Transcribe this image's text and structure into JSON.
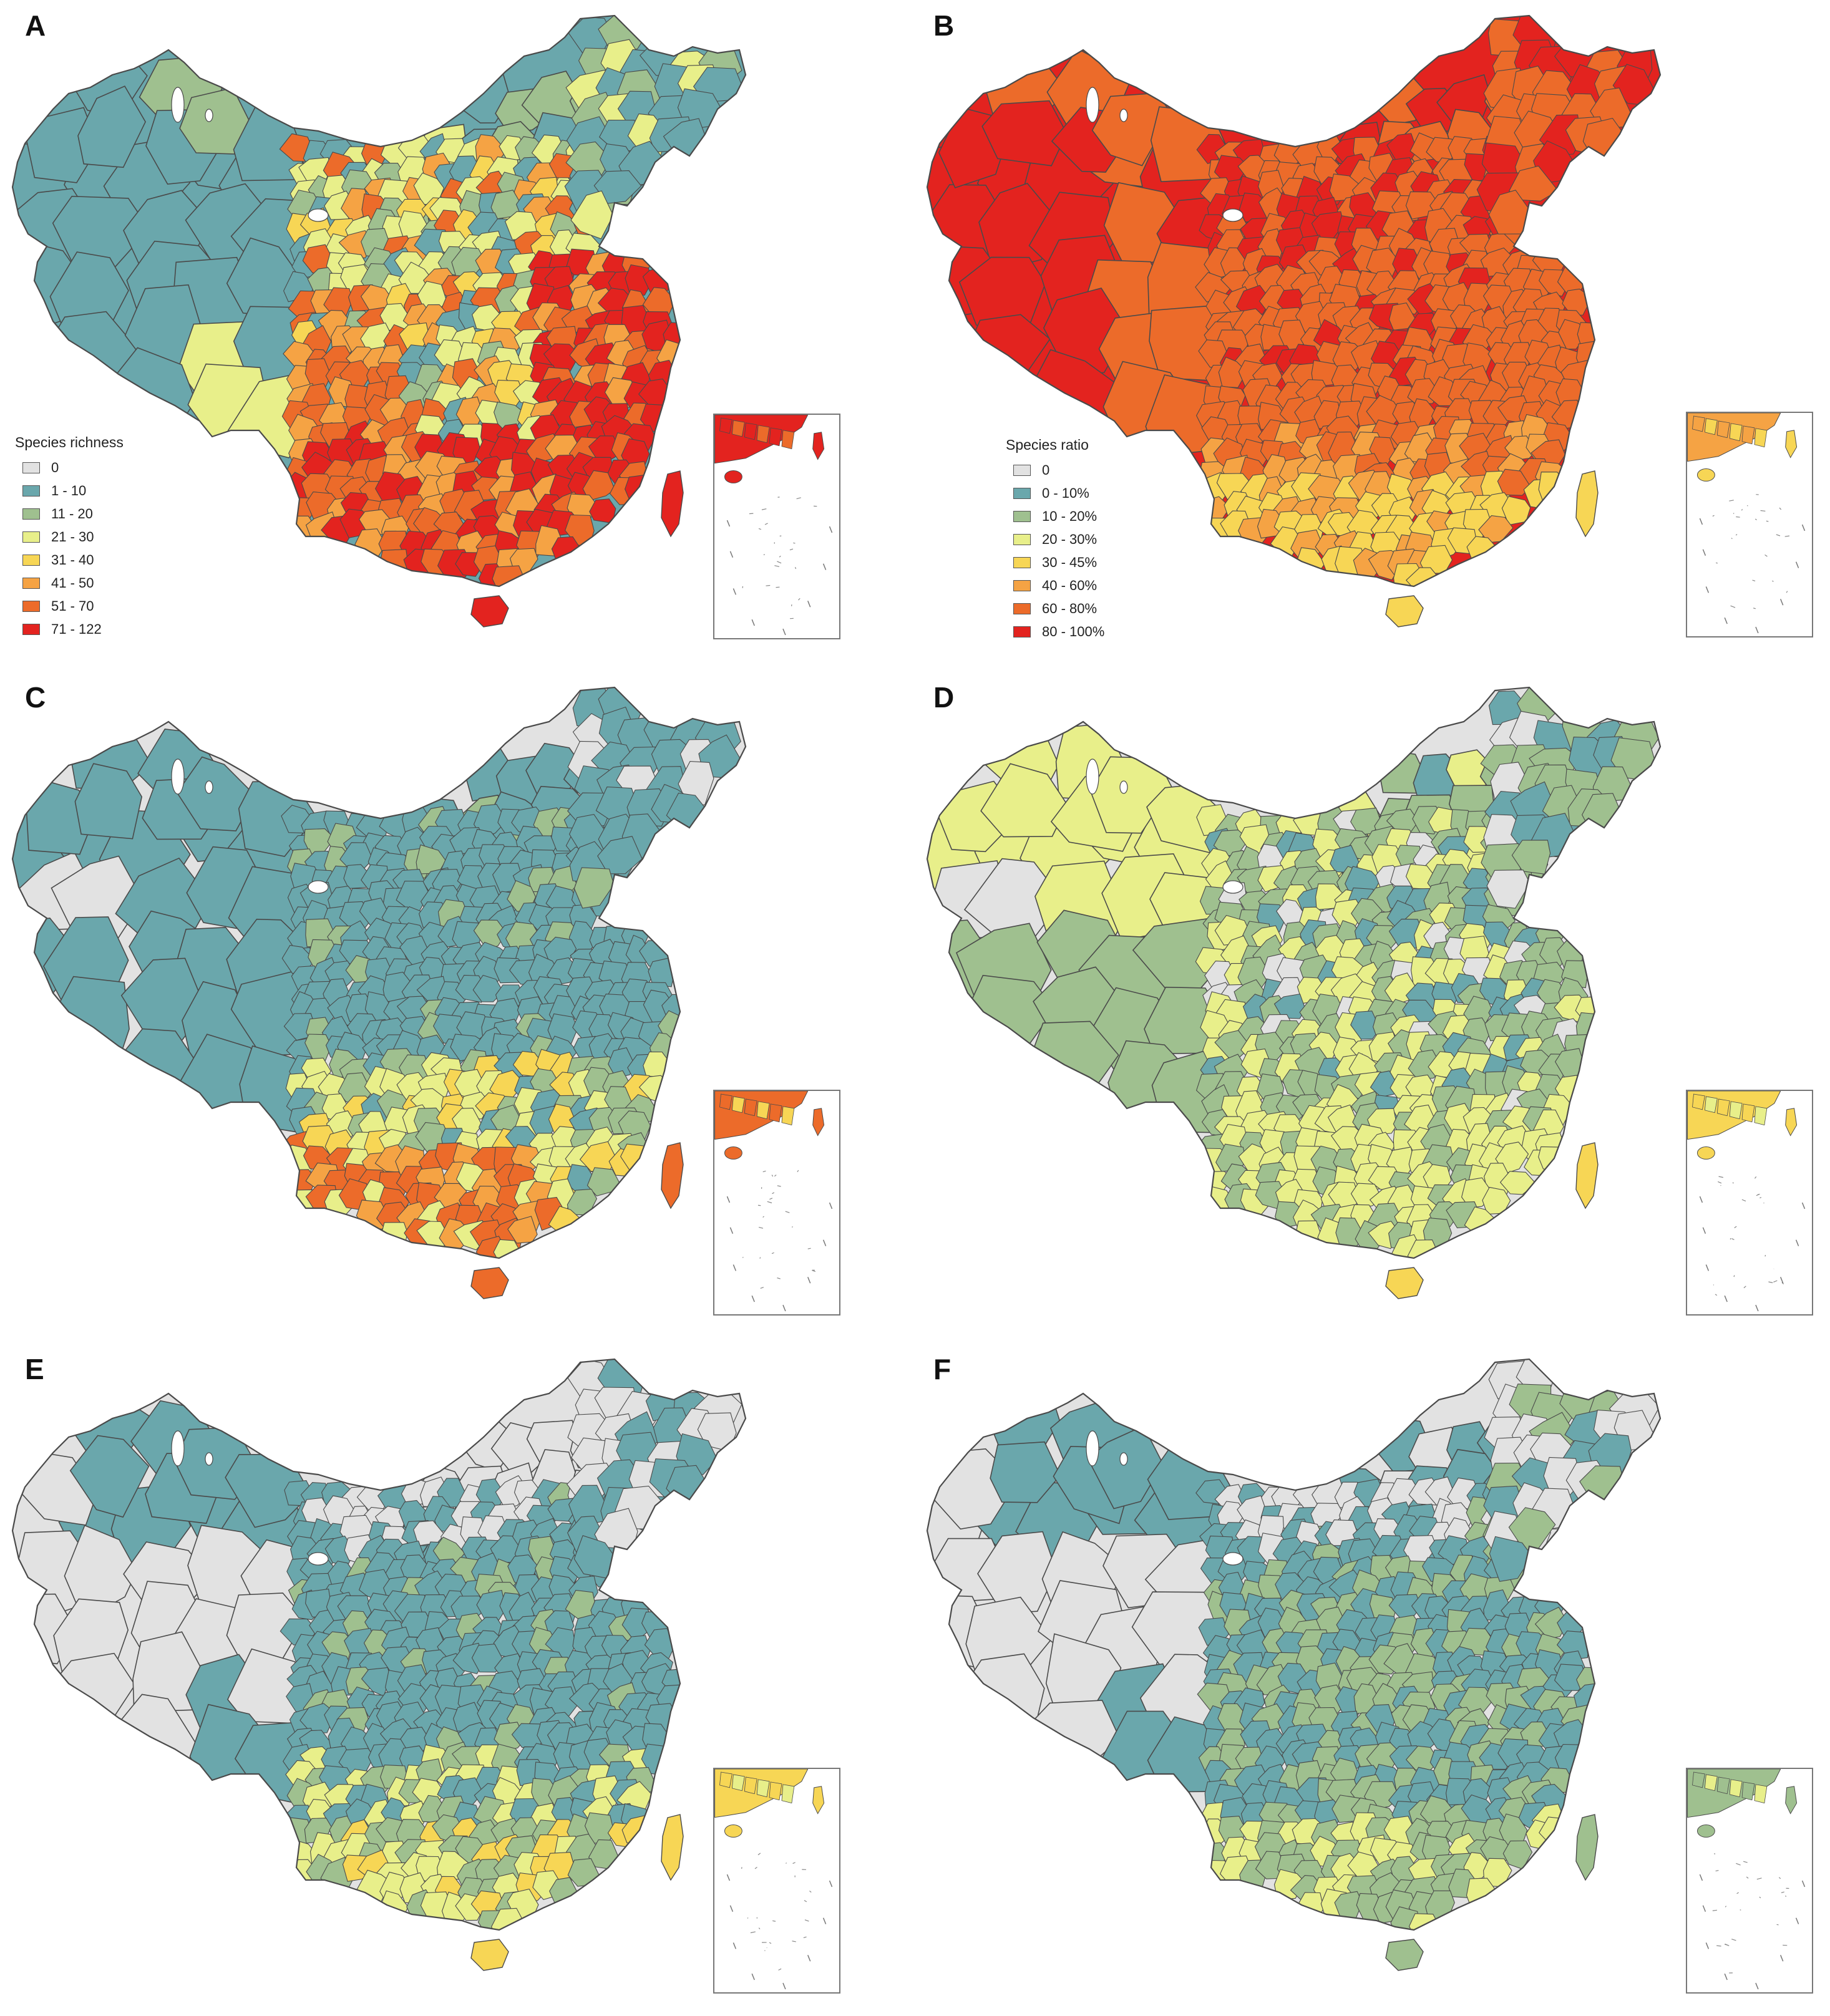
{
  "panels": [
    {
      "id": "A",
      "label": "A",
      "scheme": "richness",
      "legend": {
        "title": "Species richness",
        "items": [
          "0",
          "1 - 10",
          "11 - 20",
          "21 - 30",
          "31 - 40",
          "41 - 50",
          "51 - 70",
          "71 - 122"
        ]
      }
    },
    {
      "id": "B",
      "label": "B",
      "scheme": "ratio",
      "legend": {
        "title": "Species ratio",
        "items": [
          "0",
          "0 -  10%",
          "10 -  20%",
          "20 -  30%",
          "30 -  45%",
          "40 -  60%",
          "60 -  80%",
          "80 - 100%"
        ]
      }
    },
    {
      "id": "C",
      "label": "C",
      "scheme": "C"
    },
    {
      "id": "D",
      "label": "D",
      "scheme": "D"
    },
    {
      "id": "E",
      "label": "E",
      "scheme": "E"
    },
    {
      "id": "F",
      "label": "F",
      "scheme": "F"
    }
  ],
  "palette": [
    "#e2e2e2",
    "#6aa7ac",
    "#9fc08f",
    "#e8ef8a",
    "#f7d655",
    "#f5a344",
    "#ec6b2a",
    "#e3231f"
  ],
  "colors": {
    "border": "#4a4a4a",
    "lake": "#ffffff",
    "inset_border": "#777777",
    "background": "#ffffff"
  }
}
